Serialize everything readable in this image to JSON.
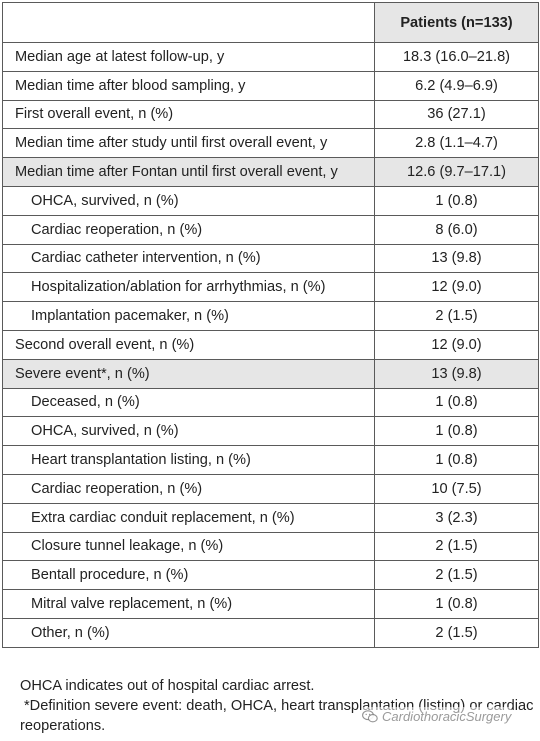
{
  "table": {
    "header": {
      "label_column": "",
      "value_column": "Patients (n=133)"
    },
    "rows": [
      {
        "label": "Median age at latest follow-up, y",
        "value": "18.3 (16.0–21.8)"
      },
      {
        "label": "Median time after blood sampling, y",
        "value": "6.2 (4.9–6.9)"
      },
      {
        "label": "First overall event, n (%)",
        "value": "36 (27.1)"
      },
      {
        "label": "Median time after study until first overall event, y",
        "value": "2.8 (1.1–4.7)"
      },
      {
        "label": "Median time after Fontan until first overall event, y",
        "value": "12.6 (9.7–17.1)"
      },
      {
        "label": "OHCA, survived, n (%)",
        "value": "1 (0.8)"
      },
      {
        "label": "Cardiac reoperation, n (%)",
        "value": "8 (6.0)"
      },
      {
        "label": "Cardiac catheter intervention, n (%)",
        "value": "13 (9.8)"
      },
      {
        "label": "Hospitalization/ablation for arrhythmias, n (%)",
        "value": "12 (9.0)"
      },
      {
        "label": "Implantation pacemaker, n (%)",
        "value": "2 (1.5)"
      },
      {
        "label": "Second overall event, n (%)",
        "value": "12 (9.0)"
      },
      {
        "label": "Severe event*, n (%)",
        "value": "13 (9.8)"
      },
      {
        "label": "Deceased, n (%)",
        "value": "1 (0.8)"
      },
      {
        "label": "OHCA, survived, n (%)",
        "value": "1 (0.8)"
      },
      {
        "label": "Heart transplantation listing, n (%)",
        "value": "1 (0.8)"
      },
      {
        "label": "Cardiac reoperation, n (%)",
        "value": "10 (7.5)"
      },
      {
        "label": "Extra cardiac conduit replacement, n (%)",
        "value": "3 (2.3)"
      },
      {
        "label": "Closure tunnel leakage, n (%)",
        "value": "2 (1.5)"
      },
      {
        "label": "Bentall procedure, n (%)",
        "value": "2 (1.5)"
      },
      {
        "label": "Mitral valve replacement, n (%)",
        "value": "1 (0.8)"
      },
      {
        "label": "Other, n (%)",
        "value": "2 (1.5)"
      }
    ]
  },
  "footnotes": {
    "abbreviation": "OHCA indicates out of hospital cardiac arrest.",
    "definition": "*Definition severe event: death, OHCA, heart transplantation (listing) or cardiac reoperations."
  },
  "watermark": {
    "icon": "wechat-icon",
    "text": "CardiothoracicSurgery"
  },
  "colors": {
    "header_shade": "#e6e6e6",
    "row_shade": "#e6e6e6",
    "border": "#5a5a5a",
    "text": "#222222"
  }
}
